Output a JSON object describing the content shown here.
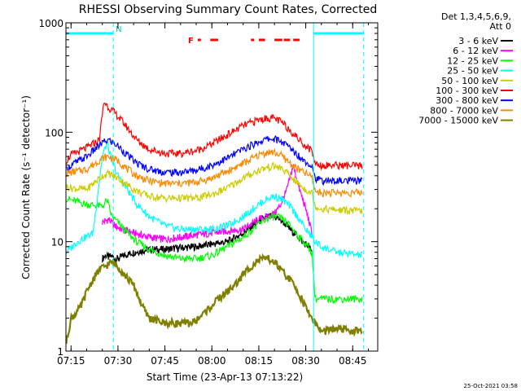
{
  "chart_data": {
    "type": "line",
    "title": "RHESSI Observing Summary Count Rates, Corrected",
    "xlabel": "Start Time (23-Apr-13 07:13:22)",
    "ylabel": "Corrected Count Rate (s⁻¹ detector⁻¹)",
    "yscale": "log",
    "ylim": [
      1,
      1000
    ],
    "xlim": [
      13.37,
      113
    ],
    "x_units": "minutes after 07:00",
    "x_ticks": [
      {
        "value": 15,
        "label": "07:15"
      },
      {
        "value": 30,
        "label": "07:30"
      },
      {
        "value": 45,
        "label": "07:45"
      },
      {
        "value": 60,
        "label": "08:00"
      },
      {
        "value": 75,
        "label": "08:15"
      },
      {
        "value": 90,
        "label": "08:30"
      },
      {
        "value": 105,
        "label": "08:45"
      }
    ],
    "y_ticks": [
      {
        "value": 1,
        "label": "1"
      },
      {
        "value": 10,
        "label": "10"
      },
      {
        "value": 100,
        "label": "100"
      },
      {
        "value": 1000,
        "label": "1000"
      }
    ],
    "legend_title": [
      "Det 1,3,4,5,6,9,",
      "Att 0"
    ],
    "legend_position": "right",
    "timestamp": "25-Oct-2021 03:58",
    "flag_label": "F",
    "night_marker_label": "N",
    "night_segments": [
      [
        13.37,
        28.5
      ],
      [
        92.5,
        108.5
      ]
    ],
    "flare_flag_segments": [
      [
        55.5,
        56.5
      ],
      [
        59.5,
        62
      ],
      [
        72.5,
        73.5
      ],
      [
        75,
        77
      ],
      [
        80,
        82.5
      ],
      [
        83,
        85
      ],
      [
        86,
        88
      ]
    ],
    "series": [
      {
        "name": "3 - 6 keV",
        "color": "#000000",
        "x": [
          25,
          26,
          27,
          28,
          29,
          30,
          32,
          35,
          40,
          45,
          50,
          55,
          60,
          65,
          70,
          73,
          75,
          77,
          79,
          81,
          83,
          85,
          87,
          89,
          91,
          92
        ],
        "values": [
          7,
          7.5,
          7.2,
          7.4,
          7,
          7,
          7.5,
          8,
          8.5,
          8.5,
          8.8,
          9,
          9.5,
          10,
          12,
          14,
          15.5,
          16.5,
          17,
          16.5,
          15,
          13,
          11.5,
          10,
          9,
          8
        ]
      },
      {
        "name": "6 - 12 keV",
        "color": "#ff00ff",
        "x": [
          25,
          27,
          29,
          31,
          35,
          40,
          45,
          50,
          55,
          60,
          65,
          70,
          75,
          78,
          80,
          82,
          84,
          86,
          88,
          90,
          92
        ],
        "values": [
          15,
          16,
          14,
          13,
          12,
          11,
          10.5,
          11,
          11.5,
          12,
          12.5,
          13,
          16,
          17,
          18,
          22,
          30,
          50,
          30,
          20,
          12
        ]
      },
      {
        "name": "12 - 25 keV",
        "color": "#00ff00",
        "x": [
          13.5,
          15,
          20,
          25,
          26.5,
          28,
          30,
          33,
          36,
          40,
          45,
          50,
          55,
          60,
          65,
          70,
          75,
          78,
          80,
          82,
          85,
          88,
          90,
          92,
          93,
          95,
          100,
          108
        ],
        "values": [
          25,
          24,
          22,
          21,
          24,
          17,
          15,
          12,
          10,
          8.5,
          7.5,
          7,
          7,
          7.5,
          9,
          11,
          14.5,
          16.5,
          17,
          16.5,
          14,
          11,
          9.5,
          8,
          3,
          3,
          3,
          3
        ]
      },
      {
        "name": "25 - 50 keV",
        "color": "#00ffff",
        "x": [
          13.5,
          17,
          22,
          25,
          26.5,
          28,
          30,
          33,
          36,
          40,
          45,
          50,
          55,
          60,
          65,
          70,
          75,
          78,
          80,
          82,
          85,
          88,
          90,
          92,
          93,
          95,
          100,
          108
        ],
        "values": [
          8,
          10,
          12,
          60,
          80,
          55,
          40,
          30,
          22,
          17,
          14,
          13,
          13,
          13,
          14,
          17,
          22,
          25,
          26,
          25,
          21,
          16,
          13,
          11,
          10,
          9,
          8,
          7.5
        ]
      },
      {
        "name": "50 - 100 keV",
        "color": "#cccc00",
        "x": [
          13.5,
          15,
          20,
          25,
          27,
          30,
          33,
          36,
          40,
          45,
          50,
          55,
          60,
          65,
          70,
          75,
          78,
          80,
          82,
          85,
          88,
          90,
          92,
          93,
          95,
          100,
          108
        ],
        "values": [
          32,
          31,
          30,
          40,
          42,
          38,
          33,
          29,
          26,
          25,
          25,
          25,
          27,
          31,
          38,
          45,
          48,
          49,
          47,
          40,
          33,
          30,
          28,
          21,
          20,
          19.5,
          19
        ]
      },
      {
        "name": "100 - 300 keV",
        "color": "#ff0000",
        "x": [
          13.5,
          15,
          20,
          24,
          25.5,
          27,
          30,
          33,
          36,
          40,
          45,
          50,
          55,
          60,
          65,
          70,
          75,
          78,
          80,
          82,
          85,
          88,
          90,
          92,
          93,
          95,
          100,
          108
        ],
        "values": [
          55,
          62,
          72,
          85,
          190,
          170,
          140,
          110,
          85,
          70,
          64,
          64,
          68,
          78,
          95,
          115,
          130,
          135,
          134,
          125,
          105,
          85,
          75,
          68,
          52,
          50,
          50,
          49
        ]
      },
      {
        "name": "300 - 800 keV",
        "color": "#0000ff",
        "x": [
          13.5,
          15,
          20,
          25,
          27,
          30,
          33,
          36,
          40,
          45,
          50,
          55,
          60,
          65,
          70,
          75,
          78,
          80,
          82,
          85,
          88,
          90,
          92,
          93,
          95,
          100,
          108
        ],
        "values": [
          45,
          50,
          60,
          80,
          85,
          75,
          62,
          52,
          46,
          43,
          43,
          45,
          50,
          58,
          70,
          82,
          87,
          87,
          83,
          72,
          60,
          54,
          50,
          38,
          36,
          36,
          36
        ]
      },
      {
        "name": "800 - 7000 keV",
        "color": "#ff8800",
        "x": [
          13.5,
          15,
          20,
          25,
          27,
          30,
          33,
          36,
          40,
          45,
          50,
          55,
          60,
          65,
          70,
          75,
          78,
          80,
          82,
          85,
          88,
          90,
          92,
          93,
          95,
          100,
          108
        ],
        "values": [
          42,
          43,
          46,
          58,
          60,
          55,
          46,
          40,
          36,
          34,
          34,
          35,
          38,
          44,
          52,
          62,
          66,
          65,
          62,
          52,
          45,
          42,
          39,
          29,
          28,
          28,
          28
        ]
      },
      {
        "name": "7000 - 15000 keV",
        "color": "#808000",
        "x": [
          13.5,
          15,
          18,
          20,
          22,
          24,
          26,
          28,
          30,
          32,
          35,
          38,
          40,
          45,
          50,
          53,
          55,
          58,
          60,
          62,
          65,
          68,
          70,
          72,
          75,
          78,
          80,
          82,
          85,
          88,
          90,
          92,
          95,
          100,
          108
        ],
        "values": [
          1.2,
          2,
          2.5,
          3.5,
          4.5,
          5.5,
          6,
          6.5,
          6,
          5,
          4,
          2.5,
          2,
          1.8,
          1.8,
          1.8,
          1.9,
          2.3,
          2.6,
          3,
          3.5,
          4.2,
          5,
          5.8,
          6.8,
          7,
          6.5,
          5.5,
          4.5,
          3.3,
          2.5,
          2,
          1.5,
          1.6,
          1.5
        ]
      }
    ]
  }
}
